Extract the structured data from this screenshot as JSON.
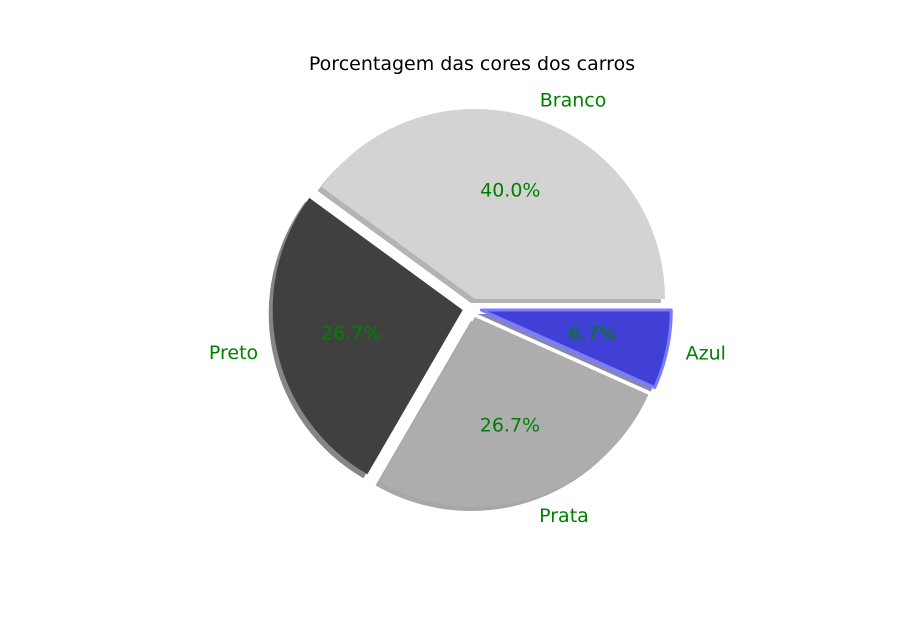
{
  "chart_data": {
    "type": "pie",
    "title": "Porcentagem das cores dos carros",
    "slices": [
      {
        "label": "Branco",
        "value": 40.0,
        "pct_label": "40.0%",
        "color": "#d3d3d3",
        "explode": 0.05
      },
      {
        "label": "Preto",
        "value": 26.7,
        "pct_label": "26.7%",
        "color": "#404040",
        "explode": 0.05
      },
      {
        "label": "Prata",
        "value": 26.7,
        "pct_label": "26.7%",
        "color": "#adadad",
        "explode": 0.05
      },
      {
        "label": "Azul",
        "value": 6.7,
        "pct_label": "6.7%",
        "color": "#4040d6",
        "explode": 0.05,
        "edge_color": "#7b7bff"
      }
    ],
    "start_angle": 0,
    "direction": "counterclockwise",
    "shadow": true,
    "text_color": "#008000"
  }
}
